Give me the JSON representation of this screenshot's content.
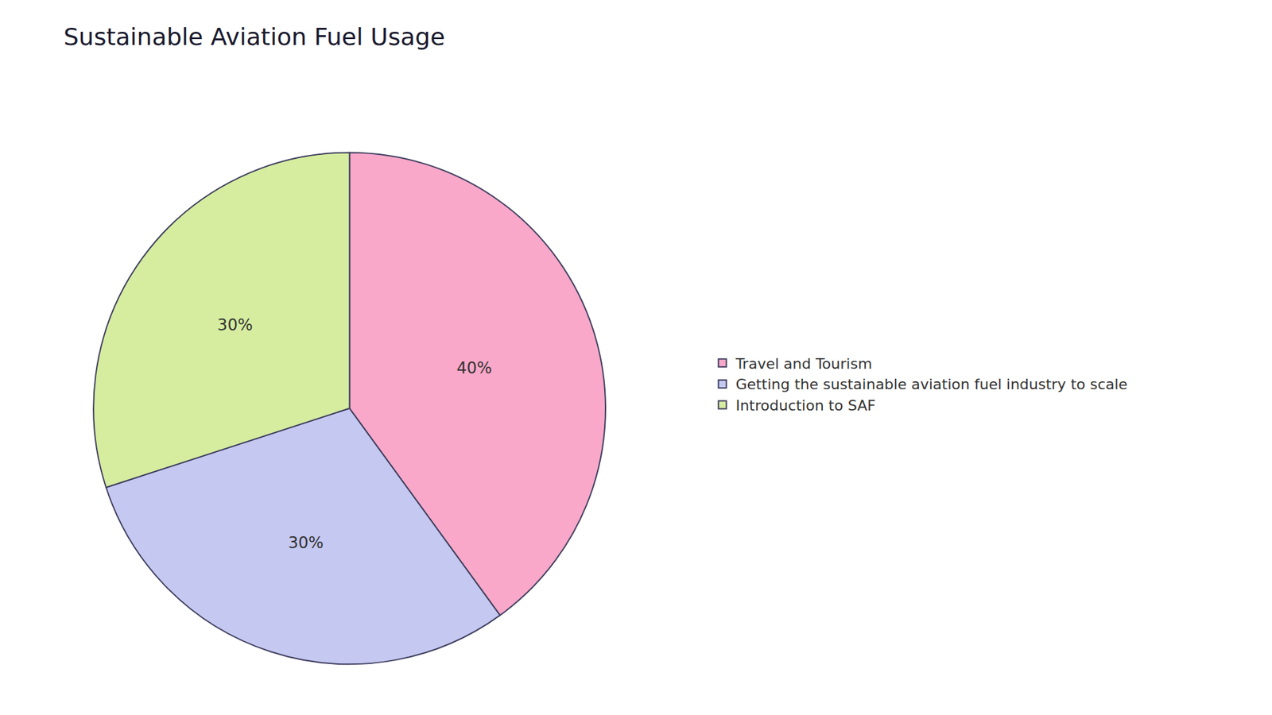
{
  "chart_data": {
    "type": "pie",
    "title": "Sustainable Aviation Fuel Usage",
    "categories": [
      "Travel and Tourism",
      "Getting the sustainable aviation fuel industry to scale",
      "Introduction to SAF"
    ],
    "values": [
      40,
      30,
      30
    ],
    "value_labels": [
      "40%",
      "30%",
      "30%"
    ],
    "colors": [
      "#F9A8C9",
      "#C5C8F0",
      "#D6EDA0"
    ],
    "data_labels": true,
    "legend": "right"
  }
}
